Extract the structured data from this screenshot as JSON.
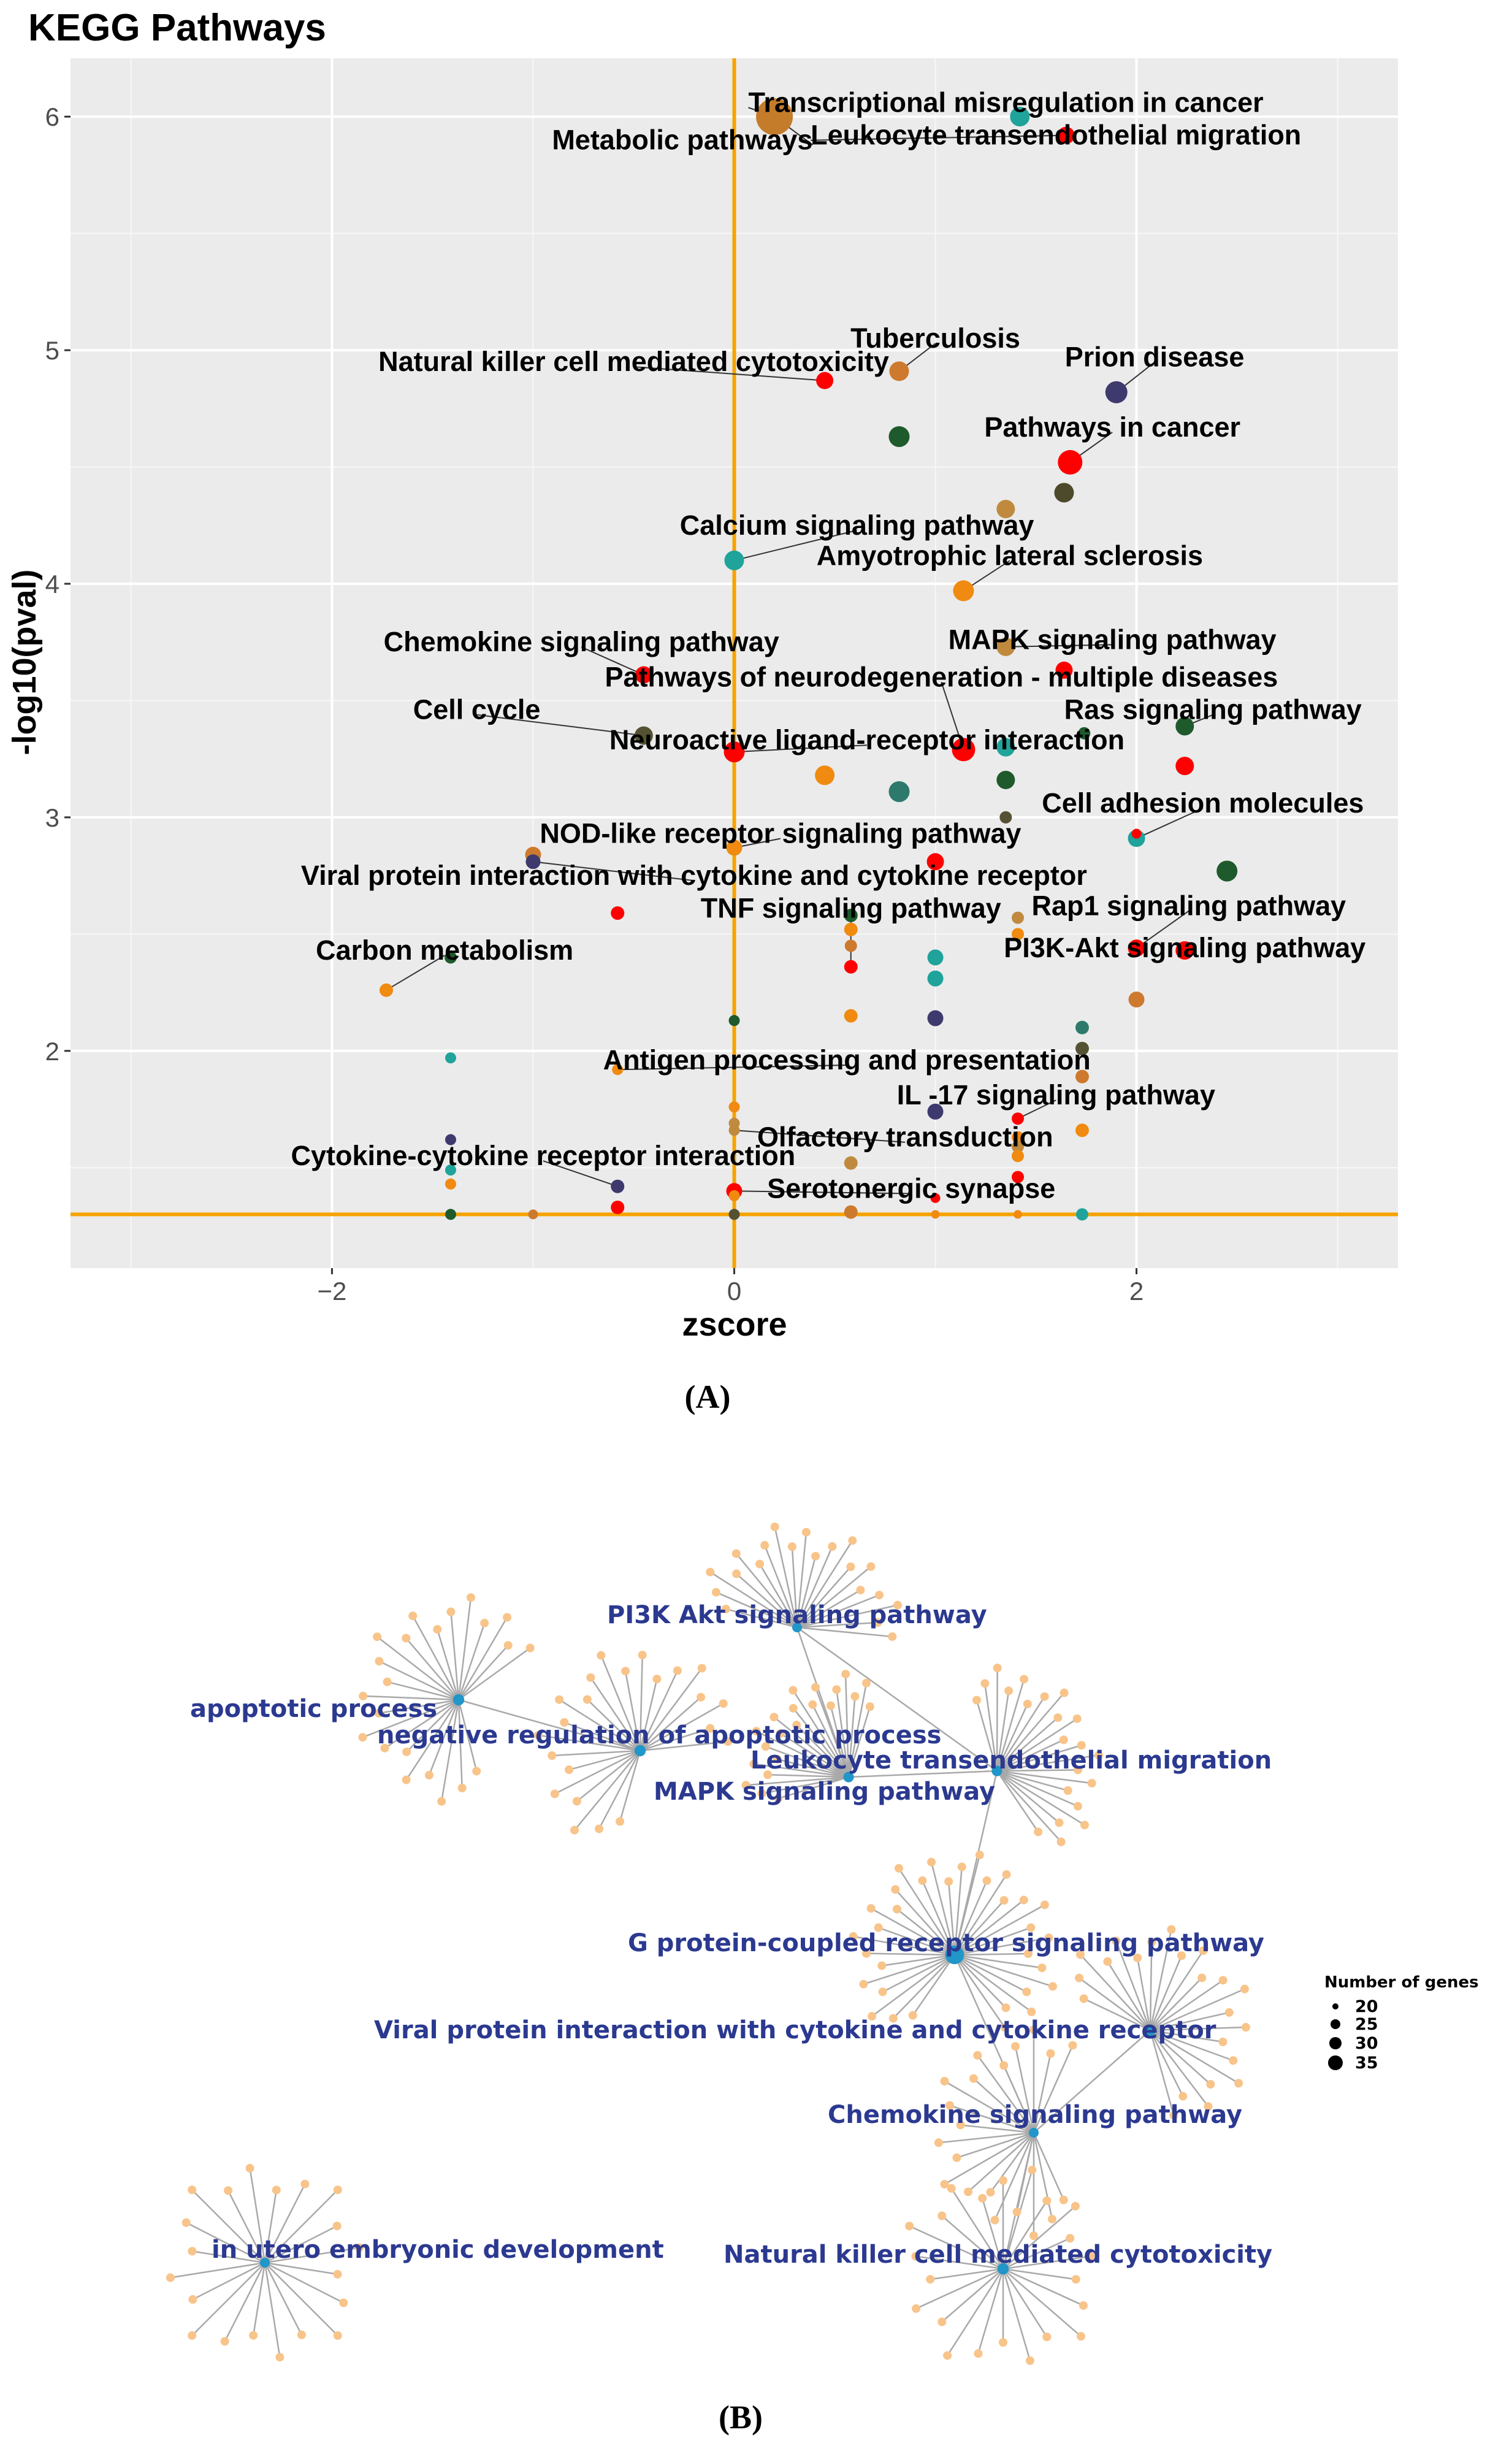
{
  "chart_data": [
    {
      "type": "scatter",
      "panel": "(A)",
      "title": "KEGG Pathways",
      "xlabel": "zscore",
      "ylabel": "-log10(pval)",
      "xlim": [
        -3.3,
        3.3
      ],
      "ylim": [
        1.07,
        6.25
      ],
      "xticks": [
        -2,
        0,
        2
      ],
      "yticks": [
        2,
        3,
        4,
        5,
        6
      ],
      "xtick_labels": [
        "−2",
        "0",
        "2"
      ],
      "ytick_labels": [
        "2",
        "3",
        "4",
        "5",
        "6"
      ],
      "threshold_x": 0,
      "threshold_y": 1.3,
      "background": "#ebebeb",
      "grid": true,
      "threshold_color": "#f5a300",
      "points": [
        {
          "x": 0.2,
          "y": 6.0,
          "size": 30,
          "color": "#c47c2a"
        },
        {
          "x": 1.42,
          "y": 6.0,
          "size": 16,
          "color": "#1fa39a"
        },
        {
          "x": 1.65,
          "y": 5.92,
          "size": 14,
          "color": "#ff0000"
        },
        {
          "x": 0.45,
          "y": 4.87,
          "size": 14,
          "color": "#ff0000"
        },
        {
          "x": 0.82,
          "y": 4.91,
          "size": 16,
          "color": "#cd7a2e"
        },
        {
          "x": 1.9,
          "y": 4.82,
          "size": 18,
          "color": "#3e3a6e"
        },
        {
          "x": 0.82,
          "y": 4.63,
          "size": 17,
          "color": "#1e5a2c"
        },
        {
          "x": 1.67,
          "y": 4.52,
          "size": 20,
          "color": "#ff0000"
        },
        {
          "x": 1.64,
          "y": 4.39,
          "size": 16,
          "color": "#4d4a2c"
        },
        {
          "x": 1.35,
          "y": 4.32,
          "size": 15,
          "color": "#c08a3e"
        },
        {
          "x": 0.0,
          "y": 4.1,
          "size": 16,
          "color": "#1fa39a"
        },
        {
          "x": 1.14,
          "y": 3.97,
          "size": 17,
          "color": "#f08a10"
        },
        {
          "x": 1.35,
          "y": 3.73,
          "size": 15,
          "color": "#c08a3e"
        },
        {
          "x": -0.45,
          "y": 3.61,
          "size": 14,
          "color": "#ff0000"
        },
        {
          "x": 1.64,
          "y": 3.63,
          "size": 14,
          "color": "#ff0000"
        },
        {
          "x": -0.45,
          "y": 3.35,
          "size": 15,
          "color": "#555233"
        },
        {
          "x": 0.0,
          "y": 3.28,
          "size": 17,
          "color": "#ff0000"
        },
        {
          "x": 0.45,
          "y": 3.18,
          "size": 16,
          "color": "#f08a10"
        },
        {
          "x": 0.82,
          "y": 3.11,
          "size": 17,
          "color": "#2d7a6c"
        },
        {
          "x": 1.14,
          "y": 3.29,
          "size": 19,
          "color": "#ff0000"
        },
        {
          "x": 1.35,
          "y": 3.3,
          "size": 15,
          "color": "#1fa39a"
        },
        {
          "x": 1.35,
          "y": 3.16,
          "size": 15,
          "color": "#1e5a2c"
        },
        {
          "x": 1.35,
          "y": 3.0,
          "size": 10,
          "color": "#555233"
        },
        {
          "x": 1.74,
          "y": 3.36,
          "size": 10,
          "color": "#1e5a2c"
        },
        {
          "x": 2.24,
          "y": 3.39,
          "size": 15,
          "color": "#1e5a2c"
        },
        {
          "x": 2.24,
          "y": 3.22,
          "size": 15,
          "color": "#ff0000"
        },
        {
          "x": 2.0,
          "y": 2.91,
          "size": 14,
          "color": "#1fa39a"
        },
        {
          "x": 2.0,
          "y": 2.93,
          "size": 8,
          "color": "#ff0000"
        },
        {
          "x": 2.45,
          "y": 2.77,
          "size": 17,
          "color": "#1e5a2c"
        },
        {
          "x": -1.0,
          "y": 2.84,
          "size": 13,
          "color": "#cd7a2e"
        },
        {
          "x": -1.0,
          "y": 2.81,
          "size": 12,
          "color": "#3e3a6e"
        },
        {
          "x": 0.0,
          "y": 2.87,
          "size": 13,
          "color": "#f08a10"
        },
        {
          "x": 1.0,
          "y": 2.81,
          "size": 14,
          "color": "#ff0000"
        },
        {
          "x": -0.58,
          "y": 2.59,
          "size": 11,
          "color": "#ff0000"
        },
        {
          "x": 0.58,
          "y": 2.58,
          "size": 11,
          "color": "#1e5a2c"
        },
        {
          "x": 0.58,
          "y": 2.52,
          "size": 11,
          "color": "#f08a10"
        },
        {
          "x": 0.58,
          "y": 2.45,
          "size": 10,
          "color": "#cd7a2e"
        },
        {
          "x": 0.58,
          "y": 2.36,
          "size": 11,
          "color": "#ff0000"
        },
        {
          "x": 1.41,
          "y": 2.57,
          "size": 10,
          "color": "#c08a3e"
        },
        {
          "x": 1.41,
          "y": 2.5,
          "size": 10,
          "color": "#f08a10"
        },
        {
          "x": 2.0,
          "y": 2.44,
          "size": 14,
          "color": "#ff0000"
        },
        {
          "x": 2.24,
          "y": 2.43,
          "size": 15,
          "color": "#ff0000"
        },
        {
          "x": -1.73,
          "y": 2.26,
          "size": 11,
          "color": "#f08a10"
        },
        {
          "x": -1.41,
          "y": 2.4,
          "size": 10,
          "color": "#1e5a2c"
        },
        {
          "x": 1.0,
          "y": 2.4,
          "size": 13,
          "color": "#1fa39a"
        },
        {
          "x": 1.0,
          "y": 2.31,
          "size": 13,
          "color": "#1fa39a"
        },
        {
          "x": 2.0,
          "y": 2.22,
          "size": 13,
          "color": "#cd7a2e"
        },
        {
          "x": 0.58,
          "y": 2.15,
          "size": 11,
          "color": "#f08a10"
        },
        {
          "x": 1.0,
          "y": 2.14,
          "size": 13,
          "color": "#3e3a6e"
        },
        {
          "x": 0.0,
          "y": 2.13,
          "size": 9,
          "color": "#1e5a2c"
        },
        {
          "x": 1.73,
          "y": 2.1,
          "size": 11,
          "color": "#2d7a6c"
        },
        {
          "x": 1.73,
          "y": 2.01,
          "size": 11,
          "color": "#555233"
        },
        {
          "x": -1.41,
          "y": 1.97,
          "size": 9,
          "color": "#1fa39a"
        },
        {
          "x": -0.58,
          "y": 1.92,
          "size": 9,
          "color": "#f08a10"
        },
        {
          "x": 1.73,
          "y": 1.89,
          "size": 11,
          "color": "#cd7a2e"
        },
        {
          "x": 0.0,
          "y": 1.76,
          "size": 9,
          "color": "#f08a10"
        },
        {
          "x": 0.0,
          "y": 1.69,
          "size": 9,
          "color": "#c08a3e"
        },
        {
          "x": 0.0,
          "y": 1.66,
          "size": 9,
          "color": "#c08a3e"
        },
        {
          "x": 1.0,
          "y": 1.74,
          "size": 13,
          "color": "#3e3a6e"
        },
        {
          "x": 1.41,
          "y": 1.71,
          "size": 10,
          "color": "#ff0000"
        },
        {
          "x": 1.73,
          "y": 1.66,
          "size": 11,
          "color": "#f08a10"
        },
        {
          "x": 1.41,
          "y": 1.63,
          "size": 10,
          "color": "#f08a10"
        },
        {
          "x": 1.41,
          "y": 1.59,
          "size": 10,
          "color": "#c08a3e"
        },
        {
          "x": 1.41,
          "y": 1.55,
          "size": 10,
          "color": "#f08a10"
        },
        {
          "x": -1.41,
          "y": 1.62,
          "size": 9,
          "color": "#3e3a6e"
        },
        {
          "x": -1.41,
          "y": 1.49,
          "size": 9,
          "color": "#1fa39a"
        },
        {
          "x": -1.41,
          "y": 1.43,
          "size": 9,
          "color": "#f08a10"
        },
        {
          "x": 0.58,
          "y": 1.52,
          "size": 11,
          "color": "#c08a3e"
        },
        {
          "x": 1.41,
          "y": 1.46,
          "size": 10,
          "color": "#ff0000"
        },
        {
          "x": -0.58,
          "y": 1.42,
          "size": 11,
          "color": "#3e3a6e"
        },
        {
          "x": 0.0,
          "y": 1.4,
          "size": 13,
          "color": "#ff0000"
        },
        {
          "x": 0.0,
          "y": 1.38,
          "size": 9,
          "color": "#f08a10"
        },
        {
          "x": 1.0,
          "y": 1.37,
          "size": 8,
          "color": "#ff0000"
        },
        {
          "x": -1.41,
          "y": 1.3,
          "size": 9,
          "color": "#1e5a2c"
        },
        {
          "x": -1.0,
          "y": 1.3,
          "size": 8,
          "color": "#cd7a2e"
        },
        {
          "x": -0.58,
          "y": 1.33,
          "size": 11,
          "color": "#ff0000"
        },
        {
          "x": 0.0,
          "y": 1.3,
          "size": 9,
          "color": "#555233"
        },
        {
          "x": 0.58,
          "y": 1.31,
          "size": 11,
          "color": "#cd7a2e"
        },
        {
          "x": 1.0,
          "y": 1.3,
          "size": 7,
          "color": "#f08a10"
        },
        {
          "x": 1.41,
          "y": 1.3,
          "size": 7,
          "color": "#f08a10"
        },
        {
          "x": 1.73,
          "y": 1.3,
          "size": 10,
          "color": "#1fa39a"
        }
      ],
      "annotations": [
        {
          "text": "Transcriptional misregulation in cancer",
          "x": 0.07,
          "y": 6.06,
          "anchor": "start",
          "px": 0.2,
          "py": 6.0
        },
        {
          "text": "Leukocyte transendothelial migration",
          "x": 0.38,
          "y": 5.92,
          "anchor": "start",
          "px": 1.65,
          "py": 5.92
        },
        {
          "text": "Metabolic pathways",
          "x": 0.39,
          "y": 5.9,
          "anchor": "end",
          "px": 0.2,
          "py": 6.0
        },
        {
          "text": "Tuberculosis",
          "x": 1.0,
          "y": 5.05,
          "anchor": "middle",
          "px": 0.82,
          "py": 4.91
        },
        {
          "text": "Natural killer cell mediated cytotoxicity",
          "x": -0.5,
          "y": 4.95,
          "anchor": "middle",
          "px": 0.45,
          "py": 4.87
        },
        {
          "text": "Prion disease",
          "x": 2.09,
          "y": 4.97,
          "anchor": "middle",
          "px": 1.9,
          "py": 4.82
        },
        {
          "text": "Pathways in cancer",
          "x": 1.88,
          "y": 4.67,
          "anchor": "middle",
          "px": 1.67,
          "py": 4.52
        },
        {
          "text": "Calcium signaling pathway",
          "x": 0.61,
          "y": 4.25,
          "anchor": "middle",
          "px": 0.0,
          "py": 4.1
        },
        {
          "text": "Amyotrophic lateral sclerosis",
          "x": 1.37,
          "y": 4.12,
          "anchor": "middle",
          "px": 1.14,
          "py": 3.97
        },
        {
          "text": "MAPK signaling pathway",
          "x": 1.88,
          "y": 3.76,
          "anchor": "middle",
          "px": 1.35,
          "py": 3.73
        },
        {
          "text": "Chemokine signaling pathway",
          "x": -0.76,
          "y": 3.75,
          "anchor": "middle",
          "px": -0.45,
          "py": 3.61
        },
        {
          "text": "Pathways of neurodegeneration - multiple diseases",
          "x": 1.03,
          "y": 3.6,
          "anchor": "middle",
          "px": 1.14,
          "py": 3.29
        },
        {
          "text": "Ras signaling pathway",
          "x": 2.38,
          "y": 3.46,
          "anchor": "middle",
          "px": 2.24,
          "py": 3.39
        },
        {
          "text": "Cell cycle",
          "x": -1.28,
          "y": 3.46,
          "anchor": "middle",
          "px": -0.45,
          "py": 3.35
        },
        {
          "text": "Neuroactive ligand-receptor interaction",
          "x": 0.66,
          "y": 3.33,
          "anchor": "middle",
          "px": 0.0,
          "py": 3.28
        },
        {
          "text": "Cell adhesion molecules",
          "x": 2.33,
          "y": 3.06,
          "anchor": "middle",
          "px": 2.0,
          "py": 2.91
        },
        {
          "text": "NOD-like receptor signaling pathway",
          "x": 0.23,
          "y": 2.93,
          "anchor": "middle",
          "px": 0.0,
          "py": 2.87
        },
        {
          "text": "Viral protein interaction with cytokine and cytokine receptor",
          "x": -0.2,
          "y": 2.75,
          "anchor": "middle",
          "px": -1.0,
          "py": 2.81
        },
        {
          "text": "TNF signaling pathway",
          "x": 0.58,
          "y": 2.61,
          "anchor": "middle",
          "px": 0.58,
          "py": 2.36
        },
        {
          "text": "Rap1 signaling pathway",
          "x": 2.26,
          "y": 2.62,
          "anchor": "middle",
          "px": 2.0,
          "py": 2.44
        },
        {
          "text": "Carbon metabolism",
          "x": -1.44,
          "y": 2.43,
          "anchor": "middle",
          "px": -1.73,
          "py": 2.26
        },
        {
          "text": "PI3K-Akt signaling pathway",
          "x": 2.24,
          "y": 2.44,
          "anchor": "middle",
          "px": 2.24,
          "py": 2.43
        },
        {
          "text": "Antigen processing and presentation",
          "x": 0.56,
          "y": 1.96,
          "anchor": "middle",
          "px": -0.58,
          "py": 1.92
        },
        {
          "text": "IL -17 signaling pathway",
          "x": 1.6,
          "y": 1.81,
          "anchor": "middle",
          "px": 1.41,
          "py": 1.71
        },
        {
          "text": "Olfactory transduction",
          "x": 0.85,
          "y": 1.63,
          "anchor": "middle",
          "px": 0.0,
          "py": 1.66
        },
        {
          "text": "Cytokine-cytokine receptor interaction",
          "x": -0.95,
          "y": 1.55,
          "anchor": "middle",
          "px": -0.58,
          "py": 1.42
        },
        {
          "text": "Serotonergic synapse",
          "x": 0.88,
          "y": 1.41,
          "anchor": "middle",
          "px": 0.0,
          "py": 1.4
        }
      ]
    },
    {
      "type": "network",
      "panel": "(B)",
      "legend_title": "Number of genes",
      "legend_values": [
        20,
        25,
        30,
        35
      ],
      "edge_color": "#a9a9a9",
      "term_node_color": "#2196c8",
      "gene_node_color": "#f8c48a",
      "label_color": "#2b3990",
      "terms": [
        {
          "name": "apoptotic process",
          "genes": 22
        },
        {
          "name": "negative regulation of apoptotic process",
          "genes": 22
        },
        {
          "name": "PI3K Akt signaling pathway",
          "genes": 20
        },
        {
          "name": "MAPK signaling pathway",
          "genes": 21
        },
        {
          "name": "Leukocyte transendothelial migration",
          "genes": 21
        },
        {
          "name": "G protein-coupled receptor signaling pathway",
          "genes": 32
        },
        {
          "name": "Viral protein interaction with cytokine and cytokine receptor",
          "genes": 22
        },
        {
          "name": "Chemokine signaling pathway",
          "genes": 20
        },
        {
          "name": "Natural killer cell mediated cytotoxicity",
          "genes": 22
        },
        {
          "name": "in utero embryonic development",
          "genes": 20
        }
      ]
    }
  ],
  "captions": {
    "a": "(A)",
    "b": "(B)"
  }
}
